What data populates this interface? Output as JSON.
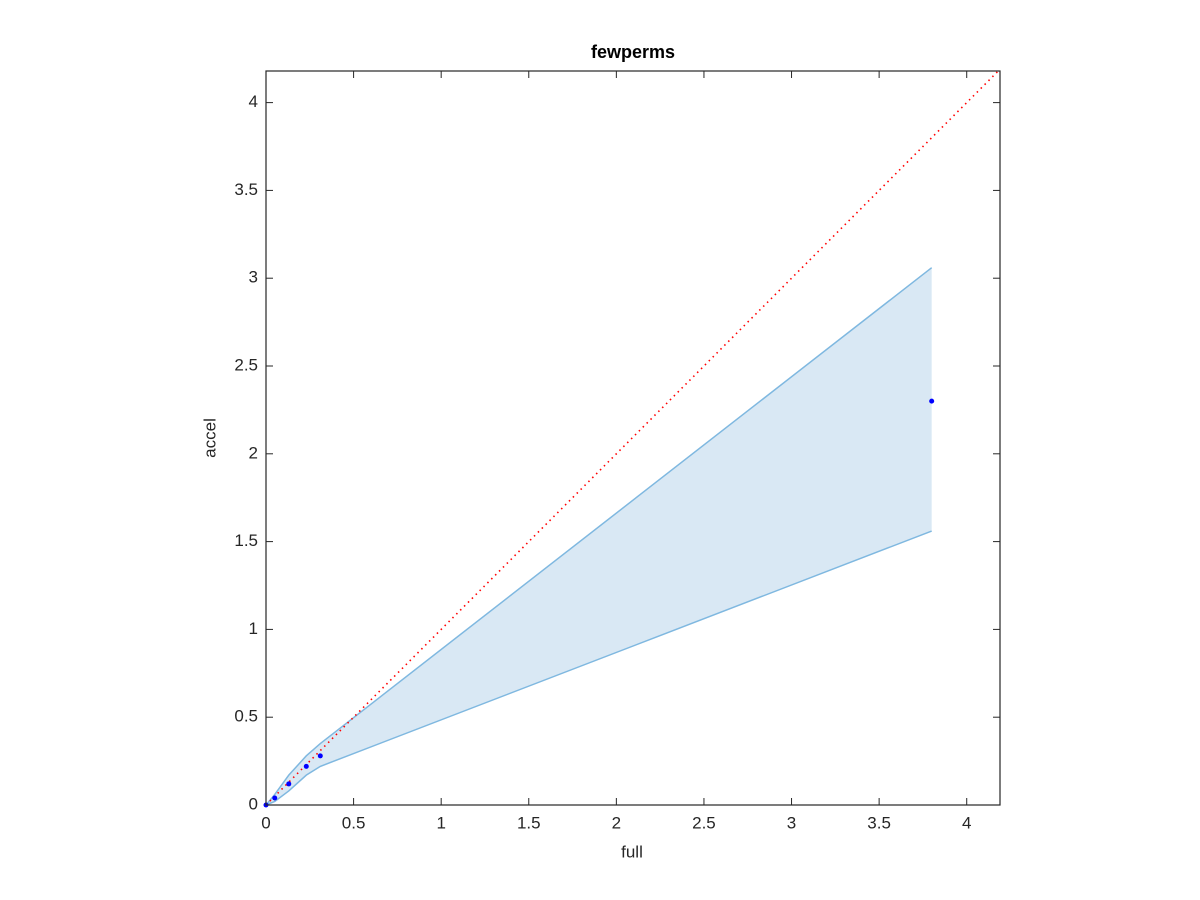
{
  "chart_data": {
    "type": "scatter",
    "title": "fewperms",
    "xlabel": "full",
    "ylabel": "accel",
    "xlim": [
      0,
      4.19
    ],
    "ylim": [
      0,
      4.18
    ],
    "xticks": [
      0,
      0.5,
      1,
      1.5,
      2,
      2.5,
      3,
      3.5,
      4
    ],
    "yticks": [
      0,
      0.5,
      1,
      1.5,
      2,
      2.5,
      3,
      3.5,
      4
    ],
    "x": [
      0,
      0.05,
      0.13,
      0.23,
      0.31,
      3.8
    ],
    "values": [
      0,
      0.04,
      0.12,
      0.22,
      0.28,
      2.3
    ],
    "color": "#0000ff",
    "band": {
      "lower": [
        0,
        0.02,
        0.08,
        0.17,
        0.22,
        1.56
      ],
      "upper": [
        0,
        0.06,
        0.17,
        0.28,
        0.35,
        3.06
      ],
      "color": "#7fb8e0",
      "fill": "#d9e8f4"
    },
    "reference": {
      "x": [
        0,
        4.18
      ],
      "y": [
        0,
        4.18
      ],
      "color": "#ff0000"
    }
  }
}
